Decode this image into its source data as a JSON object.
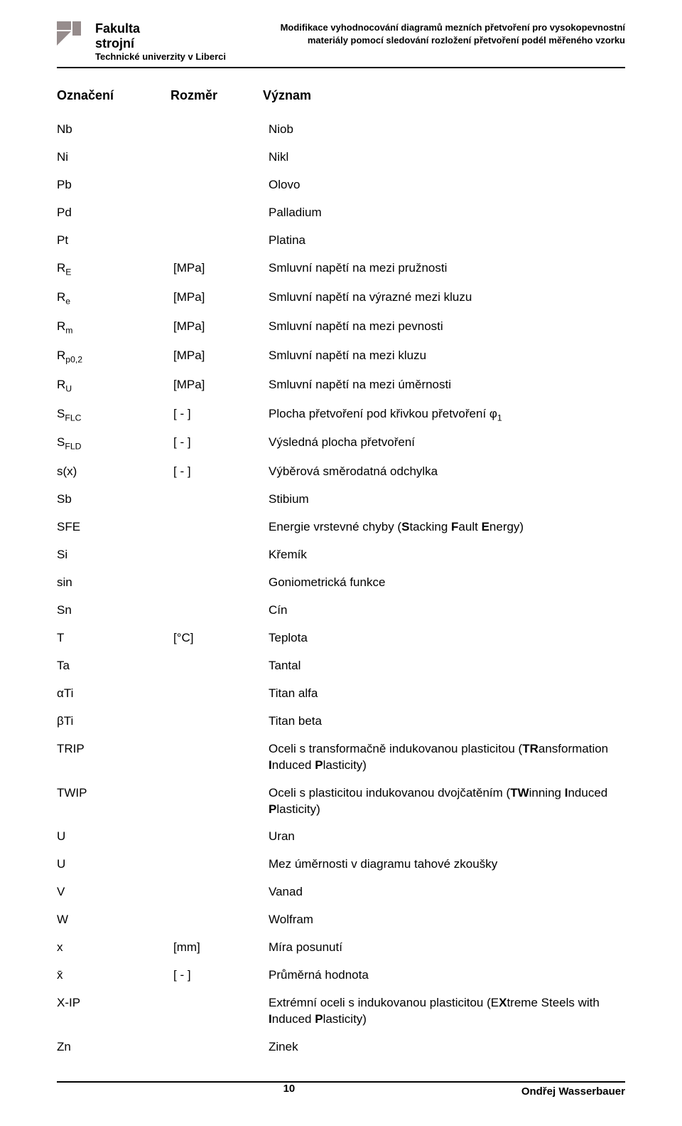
{
  "header": {
    "left_line1": "Fakulta",
    "left_line2": "strojní",
    "left_line3": "Technické univerzity v Liberci",
    "right_line1": "Modifikace vyhodnocování diagramů mezních přetvoření pro vysokopevnostní",
    "right_line2": "materiály pomocí sledování rozložení přetvoření podél měřeného vzorku"
  },
  "columns": {
    "c1": "Označení",
    "c2": "Rozměr",
    "c3": "Význam"
  },
  "rows": [
    {
      "sym": "Nb",
      "dim": "",
      "mean": "Niob"
    },
    {
      "sym": "Ni",
      "dim": "",
      "mean": "Nikl"
    },
    {
      "sym": "Pb",
      "dim": "",
      "mean": "Olovo"
    },
    {
      "sym": "Pd",
      "dim": "",
      "mean": "Palladium"
    },
    {
      "sym": "Pt",
      "dim": "",
      "mean": "Platina"
    },
    {
      "sym_html": "R<span class='sub'>E</span>",
      "dim": "[MPa]",
      "mean": "Smluvní napětí na mezi pružnosti"
    },
    {
      "sym_html": "R<span class='sub'>e</span>",
      "dim": "[MPa]",
      "mean": "Smluvní napětí na výrazné mezi kluzu"
    },
    {
      "sym_html": "R<span class='sub'>m</span>",
      "dim": "[MPa]",
      "mean": "Smluvní napětí na mezi pevnosti"
    },
    {
      "sym_html": "R<span class='sub'>p0,2</span>",
      "dim": "[MPa]",
      "mean": "Smluvní  napětí na mezi kluzu"
    },
    {
      "sym_html": "R<span class='sub'>U</span>",
      "dim": "[MPa]",
      "mean": "Smluvní napětí na mezi úměrnosti"
    },
    {
      "sym_html": "S<span class='sub'>FLC</span>",
      "dim": "[ - ]",
      "mean_html": "Plocha přetvoření pod křivkou přetvoření φ<span class='sub'>1</span>"
    },
    {
      "sym_html": "S<span class='sub'>FLD</span>",
      "dim": "[ - ]",
      "mean": "Výsledná plocha přetvoření"
    },
    {
      "sym": "s(x)",
      "dim": "[ - ]",
      "mean": "Výběrová směrodatná odchylka"
    },
    {
      "sym": "Sb",
      "dim": "",
      "mean": "Stibium"
    },
    {
      "sym": "SFE",
      "dim": "",
      "mean_html": "Energie vrstevné chyby (<b>S</b>tacking <b>F</b>ault <b>E</b>nergy)"
    },
    {
      "sym": "Si",
      "dim": "",
      "mean": "Křemík"
    },
    {
      "sym": "sin",
      "dim": "",
      "mean": "Goniometrická funkce"
    },
    {
      "sym": "Sn",
      "dim": "",
      "mean": "Cín"
    },
    {
      "sym": "T",
      "dim": "[°C]",
      "mean": "Teplota"
    },
    {
      "sym": "Ta",
      "dim": "",
      "mean": "Tantal"
    },
    {
      "sym": "αTi",
      "dim": "",
      "mean": "Titan alfa"
    },
    {
      "sym": "βTi",
      "dim": "",
      "mean": "Titan beta"
    },
    {
      "sym": "TRIP",
      "dim": "",
      "mean_html": "Oceli s transformačně indukovanou plasticitou (<b>TR</b>ansformation <b>I</b>nduced <b>P</b>lasticity)"
    },
    {
      "sym": "TWIP",
      "dim": "",
      "mean_html": "Oceli s plasticitou indukovanou dvojčatěním (<b>TW</b>inning <b>I</b>nduced <b>P</b>lasticity)"
    },
    {
      "sym": "U",
      "dim": "",
      "mean": "Uran"
    },
    {
      "sym": "U",
      "dim": "",
      "mean": "Mez úměrnosti v diagramu tahové zkoušky"
    },
    {
      "sym": "V",
      "dim": "",
      "mean": "Vanad"
    },
    {
      "sym": "W",
      "dim": "",
      "mean": "Wolfram"
    },
    {
      "sym": "x",
      "dim": "[mm]",
      "mean": "Míra posunutí"
    },
    {
      "sym": "x̄",
      "dim": "[ - ]",
      "mean": "Průměrná hodnota"
    },
    {
      "sym": "X-IP",
      "dim": "",
      "mean_html": "Extrémní oceli s indukovanou plasticitou (E<b>X</b>treme Steels with <b>I</b>nduced <b>P</b>lasticity)"
    },
    {
      "sym": "Zn",
      "dim": "",
      "mean": "Zinek"
    }
  ],
  "footer": {
    "page": "10",
    "author": "Ondřej Wasserbauer"
  },
  "colors": {
    "logo": "#968c8c",
    "text": "#000000",
    "rule": "#000000",
    "bg": "#ffffff"
  }
}
